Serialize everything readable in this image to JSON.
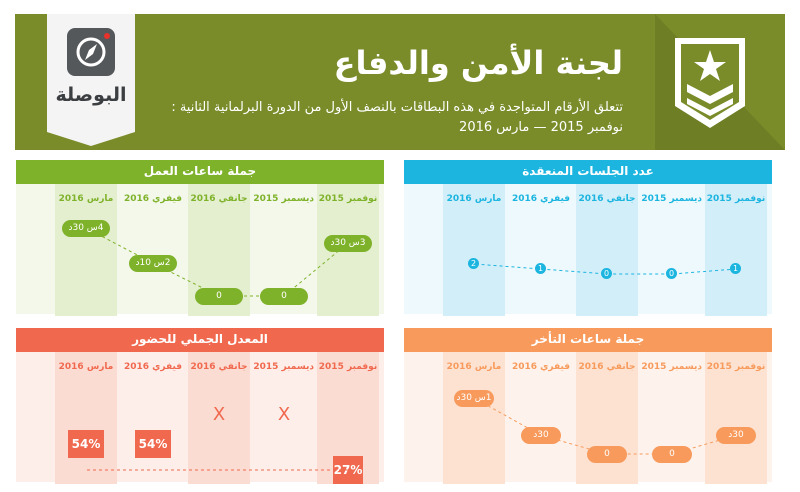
{
  "header": {
    "title": "لجنة الأمن والدفاع",
    "subtitle_line1": "تتعلق الأرقام المتواجدة في هذه البطاقات بالنصف الأول من الدورة البرلمانية الثانية :",
    "subtitle_line2": "نوفمبر 2015 — مارس 2016",
    "logo_text": "البوصلة",
    "emblem_icon": "military-rank-star-chevron-icon",
    "logo_icon": "compass-icon",
    "colors": {
      "header_bg": "#7a8c2a",
      "emblem_bg": "#6d7e24"
    }
  },
  "chart_data": [
    {
      "type": "line",
      "title": "جملة ساعات العمل",
      "categories": [
        "نوفمبر 2015",
        "ديسمبر 2015",
        "جانفي 2016",
        "فيفري 2016",
        "مارس 2016"
      ],
      "series": [
        {
          "values": [
            3.5,
            0,
            0,
            2.1667,
            4.5
          ]
        }
      ],
      "labels": [
        "3س 30د",
        "0",
        "0",
        "2س 10د",
        "4س 30د"
      ],
      "color": "#7fb22b"
    },
    {
      "type": "line",
      "title": "عدد الجلسات المنعقدة",
      "categories": [
        "نوفمبر 2015",
        "ديسمبر 2015",
        "جانفي 2016",
        "فيفري 2016",
        "مارس 2016"
      ],
      "series": [
        {
          "values": [
            1,
            0,
            0,
            1,
            2
          ]
        }
      ],
      "labels": [
        "1",
        "0",
        "0",
        "1",
        "2"
      ],
      "color": "#1bb5e0"
    },
    {
      "type": "line",
      "title": "المعدل الجملي للحضور",
      "categories": [
        "نوفمبر 2015",
        "ديسمبر 2015",
        "جانفي 2016",
        "فيفري 2016",
        "مارس 2016"
      ],
      "series": [
        {
          "values": [
            27,
            null,
            null,
            54,
            54
          ]
        }
      ],
      "labels": [
        "27%",
        "X",
        "X",
        "54%",
        "54%"
      ],
      "color": "#f0694e"
    },
    {
      "type": "line",
      "title": "جملة ساعات التأخر",
      "categories": [
        "نوفمبر 2015",
        "ديسمبر 2015",
        "جانفي 2016",
        "فيفري 2016",
        "مارس 2016"
      ],
      "series": [
        {
          "values": [
            0.5,
            0,
            0,
            0.5,
            1.5
          ]
        }
      ],
      "labels": [
        "30د",
        "0",
        "0",
        "30د",
        "1س 30د"
      ],
      "color": "#f79a5c"
    }
  ]
}
